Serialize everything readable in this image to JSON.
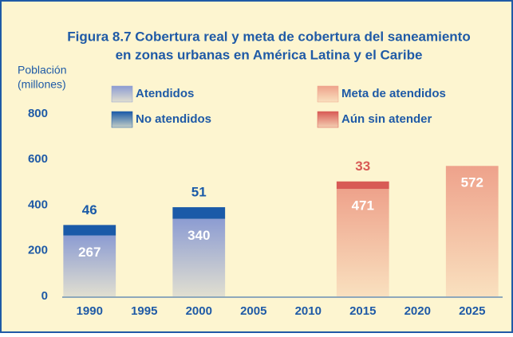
{
  "chart_data": {
    "type": "bar",
    "title": [
      "Figura 8.7  Cobertura real y meta de cobertura del saneamiento",
      "en zonas urbanas en América Latina y el Caribe"
    ],
    "y_label": [
      "Población",
      "(millones)"
    ],
    "categories": [
      "1990",
      "1995",
      "2000",
      "2005",
      "2010",
      "2015",
      "2020",
      "2025"
    ],
    "series": [
      {
        "name": "Atendidos",
        "color": "#8c9cd2",
        "values": [
          267,
          null,
          340,
          null,
          null,
          null,
          null,
          null
        ]
      },
      {
        "name": "No atendidos",
        "color": "#1a5aa8",
        "values": [
          46,
          null,
          51,
          null,
          null,
          null,
          null,
          null
        ]
      },
      {
        "name": "Meta de atendidos",
        "color": "#eea28b",
        "values": [
          null,
          null,
          null,
          null,
          null,
          471,
          null,
          572
        ]
      },
      {
        "name": "Aún sin atender",
        "color": "#d85a55",
        "values": [
          null,
          null,
          null,
          null,
          null,
          33,
          null,
          null
        ]
      }
    ],
    "ylim": [
      0,
      800
    ],
    "yticks": [
      0,
      200,
      400,
      600,
      800
    ],
    "stacked": true
  }
}
